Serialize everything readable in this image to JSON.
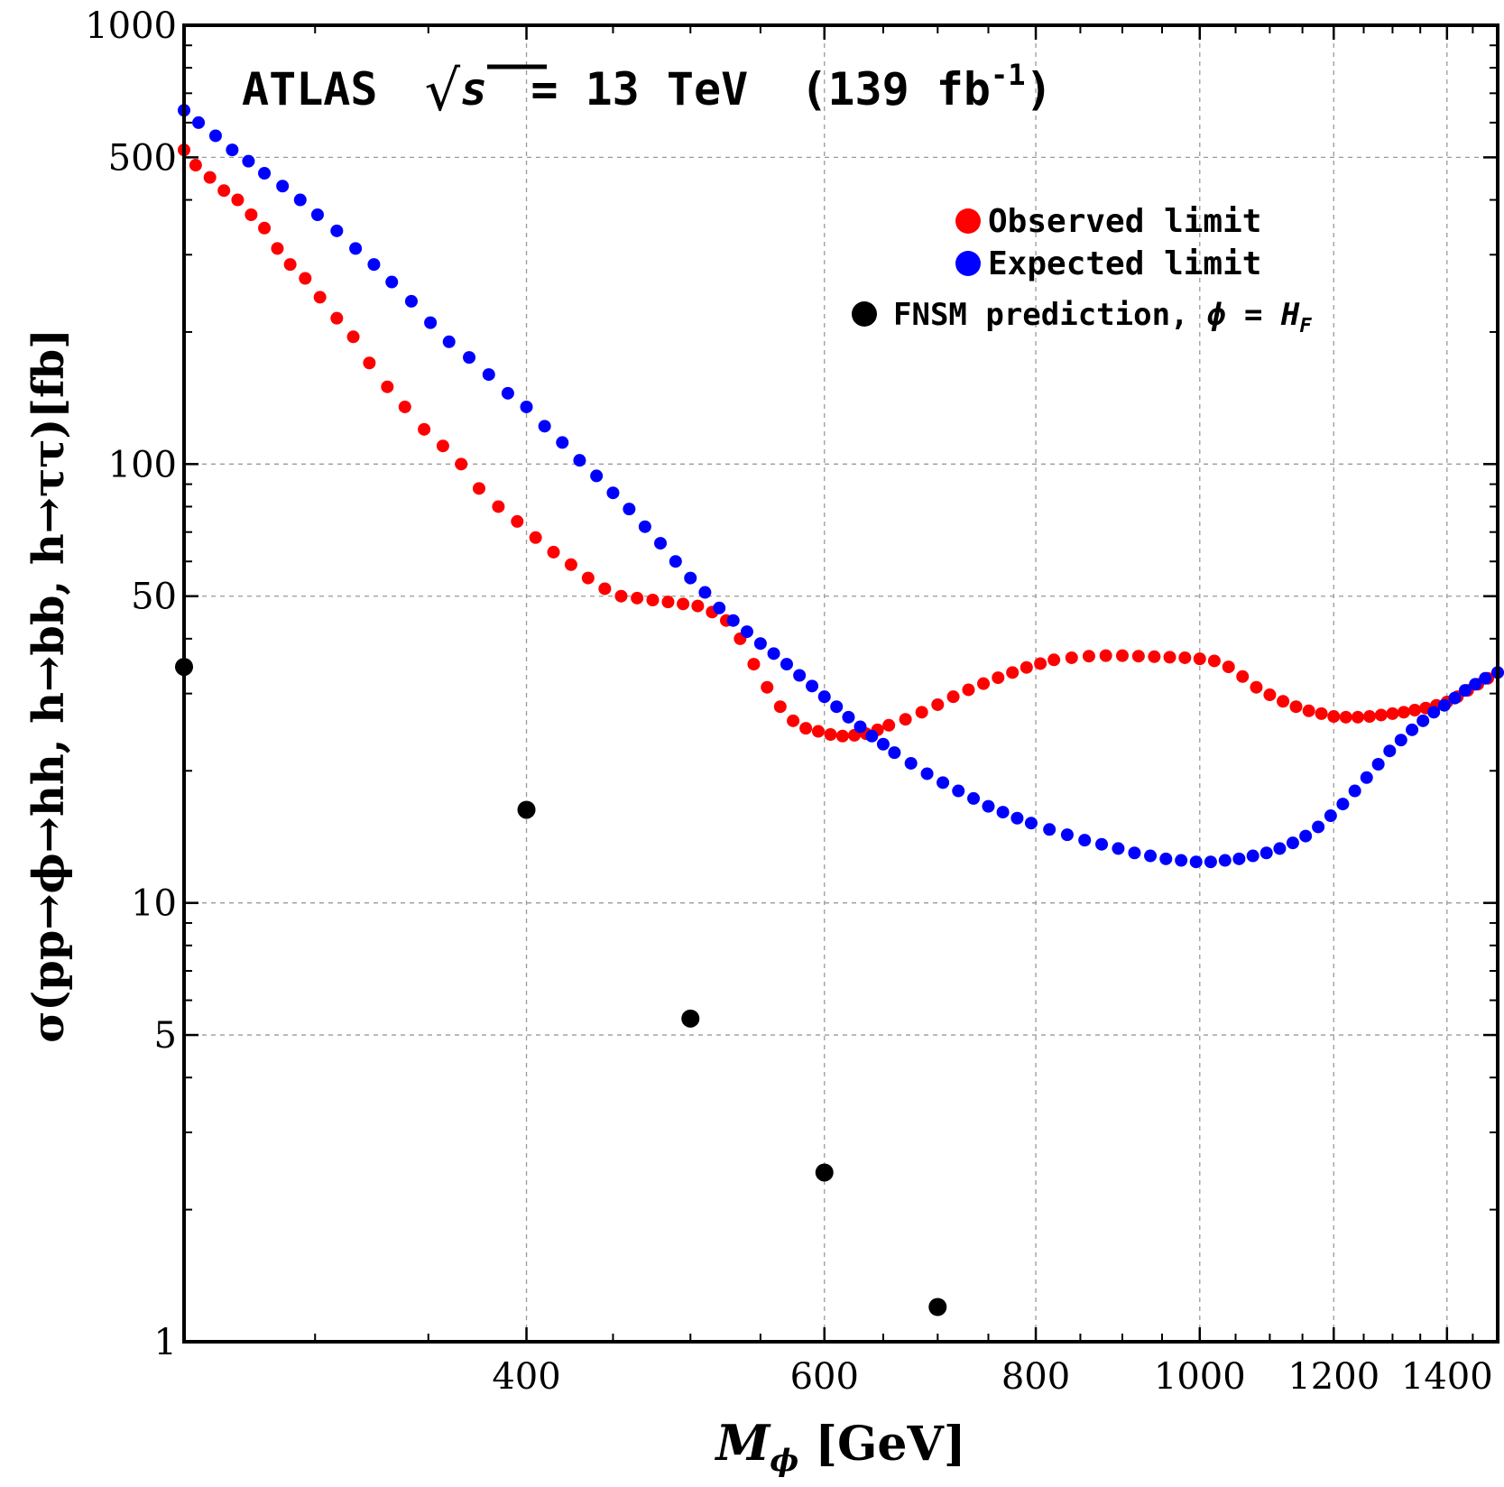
{
  "chart_data": {
    "type": "scatter",
    "title": {
      "prefix": "ATLAS",
      "sqrt_var": "s",
      "energy": "= 13 TeV",
      "lumi": "(139 fb",
      "lumi_exp": "-1",
      "lumi_close": ")"
    },
    "xlabel": {
      "main": "M",
      "sub": "ϕ",
      "unit": " [GeV]"
    },
    "ylabel": "σ(pp→ϕ→hh, h→bb, h→ττ)[fb]",
    "x_scale": "log",
    "y_scale": "log",
    "xlim": [
      251,
      1500
    ],
    "ylim": [
      1,
      1000
    ],
    "grid": true,
    "x_ticks": [
      400,
      600,
      800,
      1000,
      1200,
      1400
    ],
    "x_tick_labels": [
      "400",
      "600",
      "800",
      "1000",
      "1200",
      "1400"
    ],
    "y_ticks": [
      1,
      5,
      10,
      50,
      100,
      500,
      1000
    ],
    "y_tick_labels": [
      "1",
      "5",
      "10",
      "50",
      "100",
      "500",
      "1000"
    ],
    "legend_position": "top-right",
    "legend": [
      {
        "label": "Observed limit",
        "color": "#ff0000"
      },
      {
        "label": "Expected limit",
        "color": "#0000ff"
      },
      {
        "label_prefix": "FNSM prediction, ",
        "label_var": "ϕ",
        "label_eq": " = ",
        "label_math": "H",
        "label_sub": "F",
        "color": "#000000"
      }
    ],
    "series": [
      {
        "color": "#ff0000",
        "x": [
          251,
          255,
          260,
          265,
          270,
          275,
          280,
          285,
          290,
          296,
          302,
          309,
          316,
          323,
          331,
          339,
          348,
          357,
          366,
          375,
          385,
          395,
          405,
          415,
          425,
          435,
          445,
          455,
          465,
          475,
          485,
          495,
          505,
          515,
          525,
          535,
          545,
          555,
          565,
          575,
          585,
          595,
          605,
          615,
          625,
          635,
          645,
          655,
          670,
          685,
          700,
          715,
          730,
          745,
          760,
          775,
          790,
          805,
          820,
          840,
          860,
          880,
          900,
          920,
          940,
          960,
          980,
          1000,
          1020,
          1040,
          1060,
          1080,
          1100,
          1120,
          1140,
          1160,
          1180,
          1200,
          1220,
          1240,
          1260,
          1280,
          1300,
          1320,
          1340,
          1360,
          1380,
          1400,
          1420,
          1440,
          1460,
          1480,
          1500
        ],
        "y": [
          520,
          480,
          450,
          420,
          400,
          370,
          345,
          310,
          285,
          265,
          240,
          215,
          195,
          170,
          150,
          135,
          120,
          110,
          100,
          88,
          80,
          74,
          68,
          63,
          59,
          55,
          52,
          50,
          49.5,
          49,
          48.5,
          48,
          47.5,
          46,
          44,
          40,
          35,
          31,
          28,
          26,
          25,
          24.6,
          24.2,
          24,
          24.1,
          24.3,
          24.8,
          25.4,
          26.2,
          27.2,
          28.3,
          29.5,
          30.6,
          31.6,
          32.6,
          33.5,
          34.4,
          35.1,
          35.8,
          36.2,
          36.5,
          36.6,
          36.6,
          36.5,
          36.4,
          36.3,
          36.2,
          36,
          35.6,
          34.5,
          32.8,
          31,
          29.8,
          28.8,
          28,
          27.4,
          27,
          26.6,
          26.5,
          26.5,
          26.6,
          26.8,
          27,
          27.2,
          27.5,
          27.8,
          28.2,
          28.7,
          29.5,
          30.5,
          31.5,
          32.5,
          33.5
        ]
      },
      {
        "color": "#0000ff",
        "x": [
          251,
          256,
          262,
          268,
          274,
          280,
          287,
          294,
          301,
          309,
          317,
          325,
          333,
          342,
          351,
          360,
          370,
          380,
          390,
          400,
          410,
          420,
          430,
          440,
          450,
          460,
          470,
          480,
          490,
          500,
          510,
          520,
          530,
          540,
          550,
          560,
          570,
          580,
          590,
          600,
          610,
          620,
          630,
          640,
          650,
          660,
          675,
          690,
          705,
          720,
          735,
          750,
          765,
          780,
          795,
          815,
          835,
          855,
          875,
          895,
          915,
          935,
          955,
          975,
          995,
          1015,
          1035,
          1055,
          1075,
          1095,
          1115,
          1135,
          1155,
          1175,
          1195,
          1215,
          1235,
          1255,
          1275,
          1295,
          1315,
          1335,
          1355,
          1375,
          1395,
          1415,
          1435,
          1455,
          1475,
          1500
        ],
        "y": [
          640,
          600,
          560,
          520,
          490,
          460,
          430,
          400,
          370,
          340,
          310,
          285,
          260,
          235,
          210,
          190,
          175,
          160,
          145,
          135,
          122,
          112,
          102,
          94,
          86,
          79,
          72,
          66,
          60,
          55,
          51,
          47,
          44,
          41.5,
          39,
          37,
          35,
          33,
          31.2,
          29.5,
          28,
          26.5,
          25.2,
          24,
          23,
          22,
          20.8,
          19.7,
          18.8,
          18,
          17.3,
          16.6,
          16.1,
          15.6,
          15.2,
          14.7,
          14.3,
          13.9,
          13.6,
          13.3,
          13,
          12.8,
          12.6,
          12.5,
          12.4,
          12.4,
          12.5,
          12.6,
          12.8,
          13,
          13.3,
          13.7,
          14.2,
          14.9,
          15.8,
          16.8,
          18,
          19.3,
          20.7,
          22.2,
          23.5,
          24.8,
          26,
          27.2,
          28.2,
          29.3,
          30.5,
          31.5,
          32.5,
          33.5
        ]
      },
      {
        "color": "#000000",
        "x": [
          251,
          400,
          500,
          600,
          700
        ],
        "y": [
          34.5,
          16.3,
          5.45,
          2.43,
          1.2
        ]
      }
    ]
  }
}
